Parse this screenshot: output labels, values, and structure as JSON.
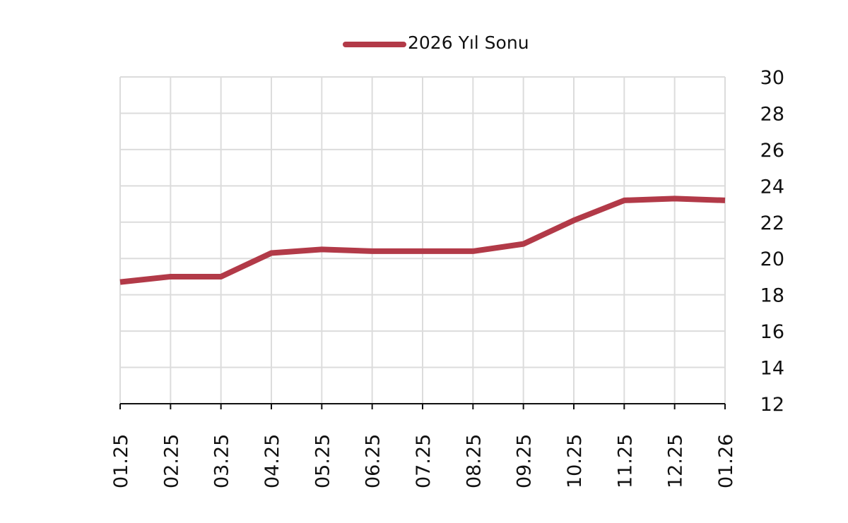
{
  "chart_data": {
    "type": "line",
    "title": "",
    "xlabel": "",
    "ylabel": "",
    "categories": [
      "01.25",
      "02.25",
      "03.25",
      "04.25",
      "05.25",
      "06.25",
      "07.25",
      "08.25",
      "09.25",
      "10.25",
      "11.25",
      "12.25",
      "01.26"
    ],
    "series": [
      {
        "name": "2026 Yıl Sonu",
        "color": "#b23a48",
        "values": [
          18.7,
          19.0,
          19.0,
          20.3,
          20.5,
          20.4,
          20.4,
          20.4,
          20.8,
          22.1,
          23.2,
          23.3,
          23.2
        ]
      }
    ],
    "ylim": [
      12,
      30
    ],
    "yticks": [
      12,
      14,
      16,
      18,
      20,
      22,
      24,
      26,
      28,
      30
    ],
    "y_axis_side": "right",
    "grid": true,
    "legend": "top-center"
  }
}
